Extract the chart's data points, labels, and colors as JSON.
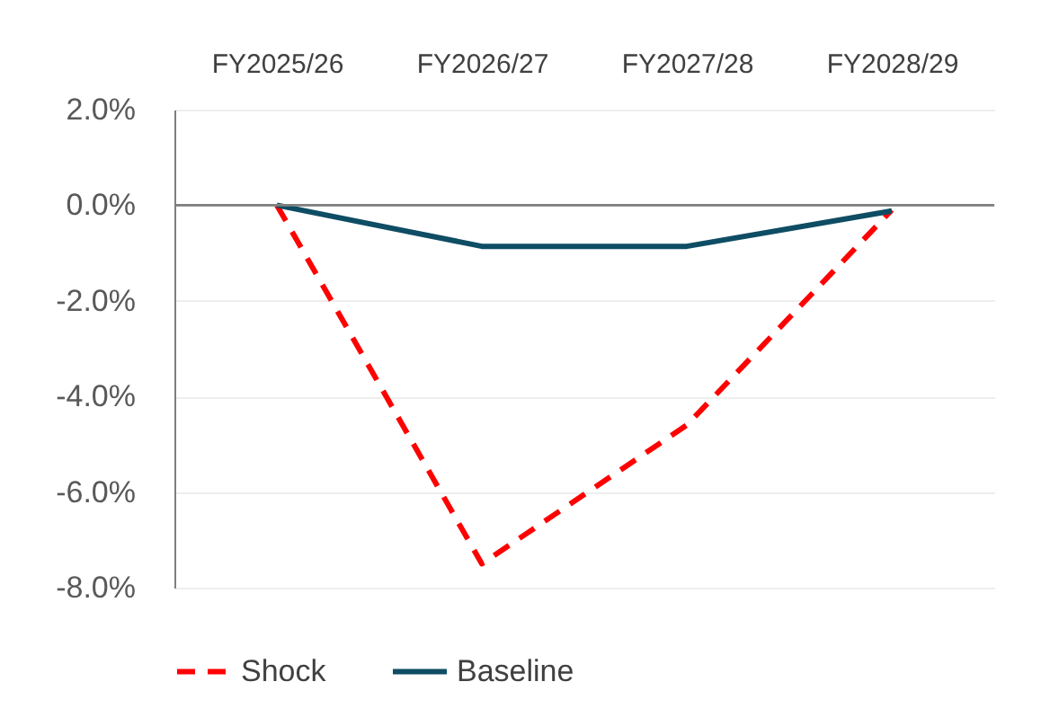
{
  "chart_data": {
    "type": "line",
    "categories": [
      "FY2025/26",
      "FY2026/27",
      "FY2027/28",
      "FY2028/29"
    ],
    "series": [
      {
        "name": "Shock",
        "color": "#ff0000",
        "line_style": "dashed",
        "values": [
          0,
          -7.5,
          -4.6,
          -0.1
        ]
      },
      {
        "name": "Baseline",
        "color": "#0e4d64",
        "line_style": "solid",
        "values": [
          0,
          -0.86,
          -0.86,
          -0.12
        ]
      }
    ],
    "ylim": [
      -8,
      2
    ],
    "yticks": [
      {
        "value": 2,
        "label": "2.0%"
      },
      {
        "value": 0,
        "label": "0.0%"
      },
      {
        "value": -2,
        "label": "-2.0%"
      },
      {
        "value": -4,
        "label": "-4.0%"
      },
      {
        "value": -6,
        "label": "-6.0%"
      },
      {
        "value": -8,
        "label": "-8.0%"
      }
    ],
    "ref_lines": [
      {
        "axis": "y",
        "value": 0,
        "color": "#7f7f7f"
      }
    ],
    "grid": "y",
    "legend": "bottom",
    "marker": "none"
  }
}
